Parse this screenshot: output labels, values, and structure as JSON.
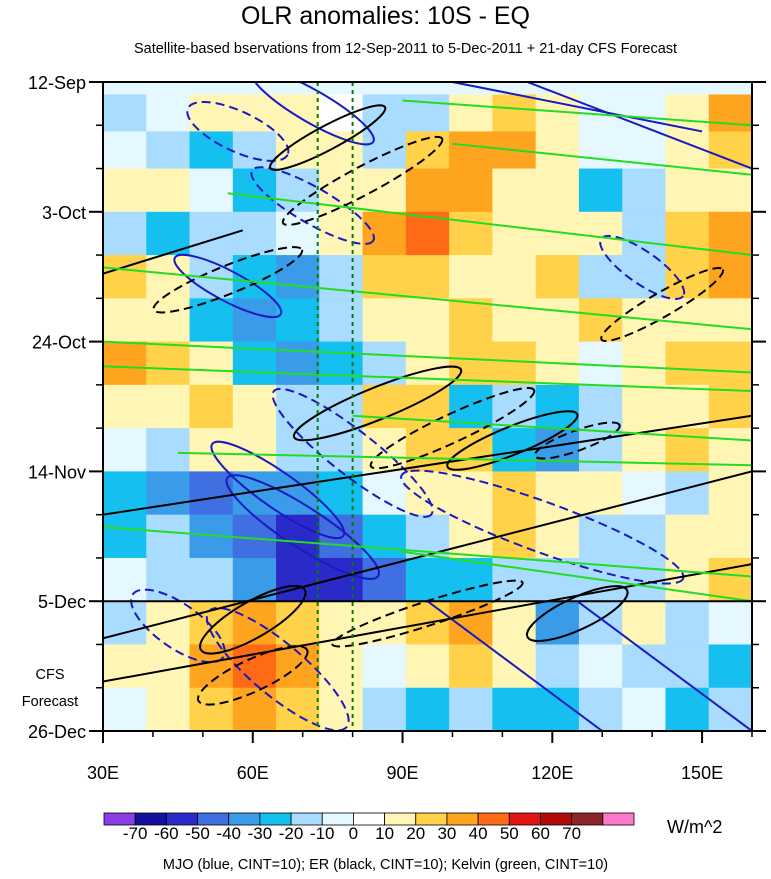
{
  "chart_data": {
    "type": "heatmap",
    "title": "OLR anomalies: 10S - EQ",
    "subtitle": "Satellite-based bservations from 12-Sep-2011 to 5-Dec-2011 + 21-day CFS Forecast",
    "x_ticks": [
      {
        "label": "30E",
        "lon": 30
      },
      {
        "label": "60E",
        "lon": 60
      },
      {
        "label": "90E",
        "lon": 90
      },
      {
        "label": "120E",
        "lon": 120
      },
      {
        "label": "150E",
        "lon": 150
      }
    ],
    "xlim": [
      30,
      160
    ],
    "y_ticks": [
      {
        "label": "12-Sep",
        "day": 0
      },
      {
        "label": "3-Oct",
        "day": 21
      },
      {
        "label": "24-Oct",
        "day": 42
      },
      {
        "label": "14-Nov",
        "day": 63
      },
      {
        "label": "5-Dec",
        "day": 84
      },
      {
        "label": "26-Dec",
        "day": 105
      }
    ],
    "ylim": [
      0,
      105
    ],
    "observation_end_day": 84,
    "forecast_label": [
      "CFS",
      "Forecast"
    ],
    "reference_lons": [
      73,
      80
    ],
    "colorbar": {
      "units": "W/m^2",
      "labels": [
        "-70",
        "-60",
        "-50",
        "-40",
        "-30",
        "-20",
        "-10",
        "0",
        "10",
        "20",
        "30",
        "40",
        "50",
        "60",
        "70"
      ],
      "colors": [
        "#8b3ee6",
        "#140f9e",
        "#2a2ac8",
        "#3f6fe0",
        "#3a9be8",
        "#15c0f0",
        "#a9dcff",
        "#e5f7ff",
        "#ffffff",
        "#fff6b5",
        "#ffd24a",
        "#ffa41f",
        "#ff6a17",
        "#e01616",
        "#b30a0a",
        "#8a2626",
        "#ff77c9"
      ]
    },
    "bands": [
      {
        "d0": 2,
        "d1": 8,
        "values": [
          -12,
          -8,
          10,
          12,
          14,
          8,
          -20,
          -12,
          10,
          20,
          18,
          -10,
          -6,
          15,
          30
        ]
      },
      {
        "d0": 8,
        "d1": 14,
        "values": [
          -8,
          -12,
          -24,
          -14,
          12,
          10,
          -16,
          20,
          35,
          30,
          18,
          -10,
          -8,
          12,
          25
        ]
      },
      {
        "d0": 14,
        "d1": 21,
        "values": [
          10,
          12,
          -10,
          -26,
          -16,
          12,
          18,
          35,
          32,
          15,
          10,
          -22,
          -12,
          10,
          14
        ]
      },
      {
        "d0": 21,
        "d1": 28,
        "values": [
          -18,
          -28,
          -20,
          -14,
          -10,
          16,
          38,
          42,
          28,
          14,
          18,
          10,
          -12,
          24,
          30
        ]
      },
      {
        "d0": 28,
        "d1": 35,
        "values": [
          22,
          12,
          -18,
          -30,
          -32,
          -14,
          20,
          25,
          18,
          14,
          20,
          -16,
          -20,
          22,
          34
        ]
      },
      {
        "d0": 35,
        "d1": 42,
        "values": [
          14,
          18,
          -24,
          -36,
          -28,
          -12,
          10,
          18,
          22,
          10,
          16,
          26,
          18,
          12,
          10
        ]
      },
      {
        "d0": 42,
        "d1": 49,
        "values": [
          30,
          20,
          10,
          -26,
          -40,
          -30,
          -16,
          14,
          24,
          26,
          14,
          -10,
          10,
          20,
          24
        ]
      },
      {
        "d0": 49,
        "d1": 56,
        "values": [
          14,
          16,
          24,
          10,
          -16,
          -20,
          22,
          26,
          -24,
          -14,
          -30,
          -18,
          12,
          16,
          26
        ]
      },
      {
        "d0": 56,
        "d1": 63,
        "values": [
          -10,
          -14,
          10,
          18,
          -20,
          -12,
          14,
          20,
          24,
          -28,
          -38,
          -20,
          10,
          20,
          18
        ]
      },
      {
        "d0": 63,
        "d1": 70,
        "values": [
          -30,
          -40,
          -50,
          -36,
          -40,
          -28,
          -10,
          14,
          18,
          22,
          10,
          14,
          -10,
          -14,
          12
        ]
      },
      {
        "d0": 70,
        "d1": 77,
        "values": [
          -24,
          -20,
          -36,
          -48,
          -52,
          -44,
          -22,
          -12,
          12,
          20,
          14,
          -16,
          -20,
          12,
          18
        ]
      },
      {
        "d0": 77,
        "d1": 84,
        "values": [
          -10,
          -14,
          -20,
          -40,
          -60,
          -52,
          -44,
          -30,
          -26,
          -12,
          -18,
          -20,
          -14,
          10,
          22
        ]
      },
      {
        "d0": 84,
        "d1": 91,
        "values": [
          -14,
          12,
          24,
          32,
          26,
          14,
          10,
          28,
          36,
          18,
          -40,
          -20,
          10,
          -12,
          -10
        ]
      },
      {
        "d0": 91,
        "d1": 98,
        "values": [
          10,
          14,
          30,
          42,
          30,
          18,
          -10,
          14,
          20,
          10,
          -14,
          -10,
          -16,
          -20,
          -24
        ]
      },
      {
        "d0": 98,
        "d1": 105,
        "values": [
          -10,
          12,
          26,
          34,
          28,
          18,
          -14,
          -24,
          -20,
          -28,
          -30,
          -16,
          -10,
          -28,
          -20
        ]
      }
    ]
  }
}
